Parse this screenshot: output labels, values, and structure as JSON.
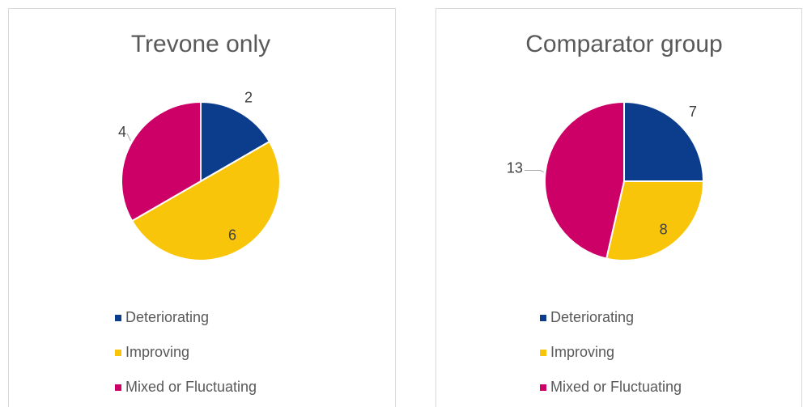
{
  "chart_data": [
    {
      "type": "pie",
      "title": "Trevone only",
      "categories": [
        "Deteriorating",
        "Improving",
        "Mixed or Fluctuating"
      ],
      "values": [
        2,
        6,
        4
      ],
      "colors": [
        "#0c3c8c",
        "#f8c50b",
        "#cd0068"
      ],
      "legend": "bottom"
    },
    {
      "type": "pie",
      "title": "Comparator group",
      "categories": [
        "Deteriorating",
        "Improving",
        "Mixed or Fluctuating"
      ],
      "values": [
        7,
        8,
        13
      ],
      "colors": [
        "#0c3c8c",
        "#f8c50b",
        "#cd0068"
      ],
      "legend": "bottom"
    }
  ]
}
